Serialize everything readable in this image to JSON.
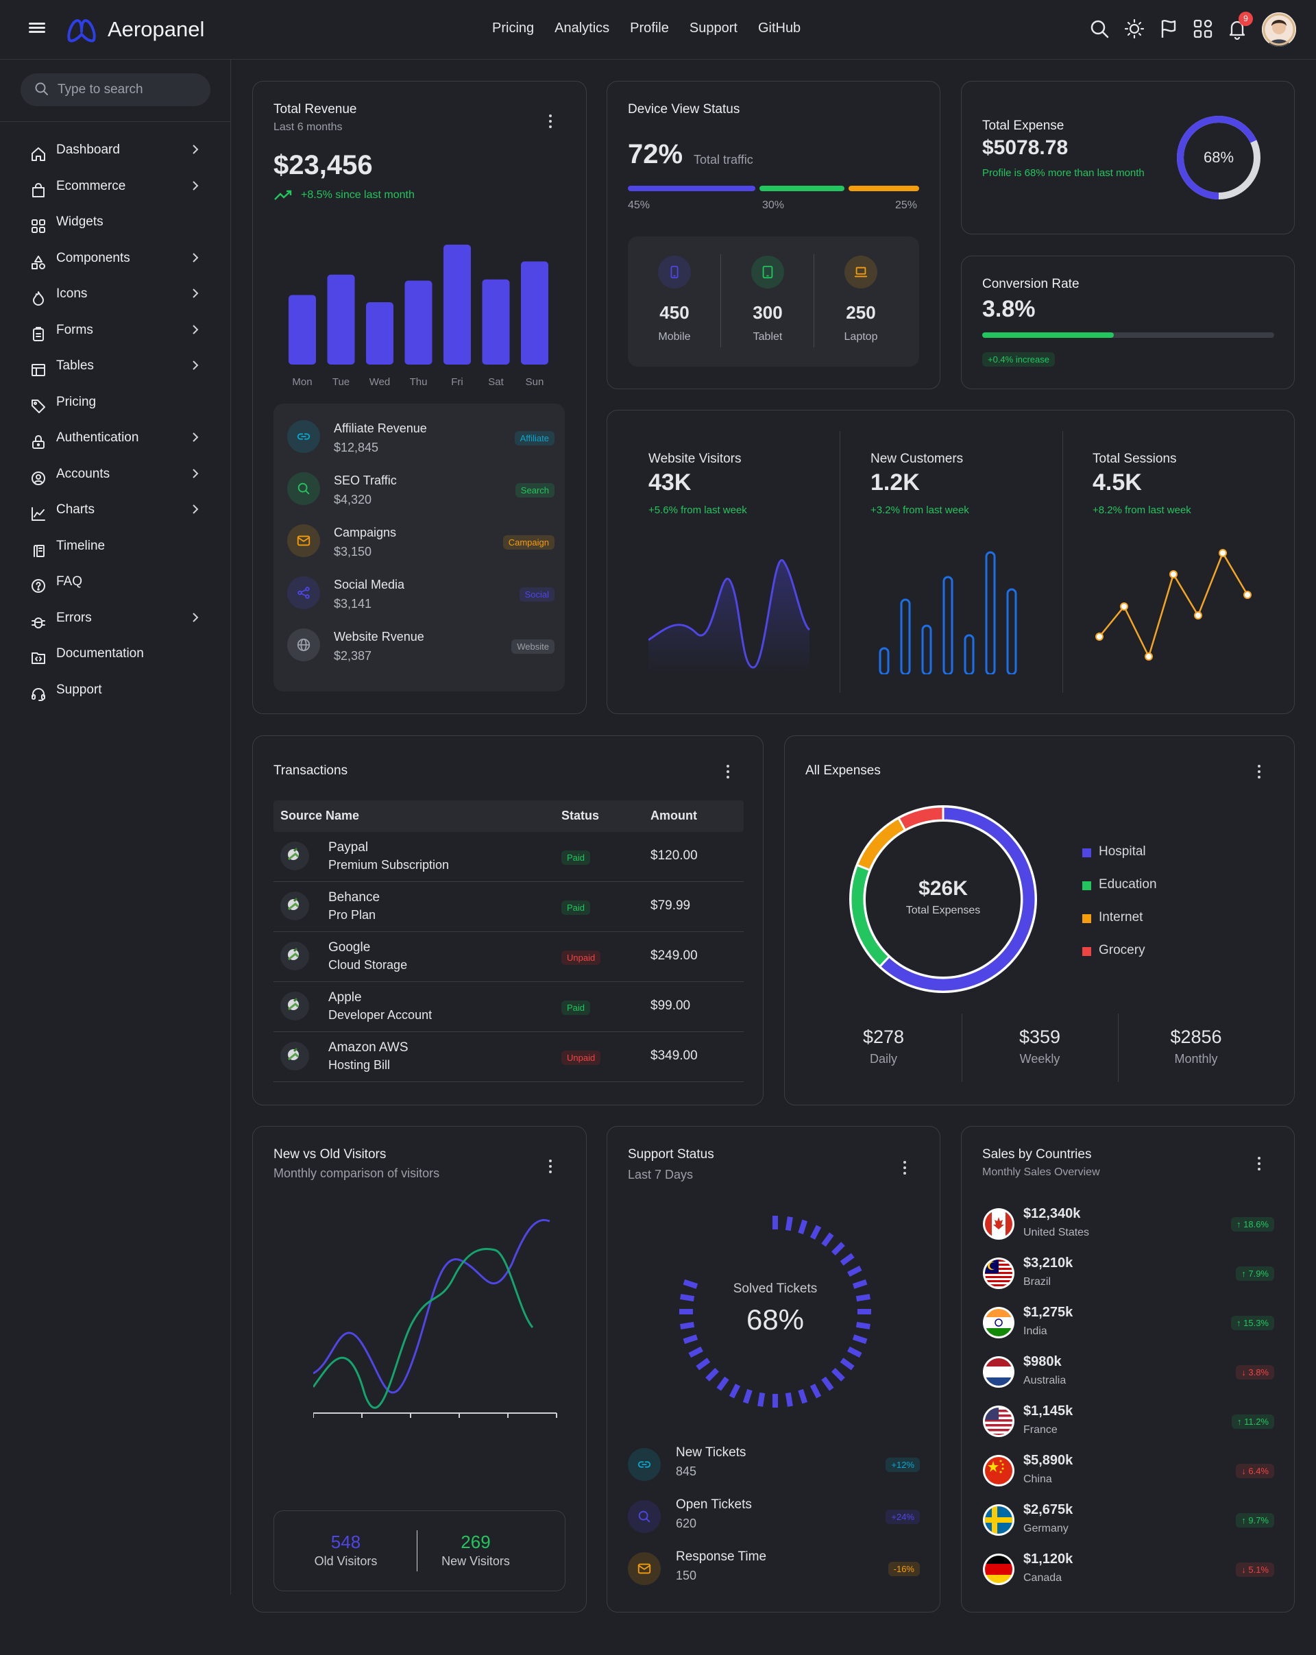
{
  "app": {
    "brand": "Aeropanel"
  },
  "topnav": [
    "Pricing",
    "Analytics",
    "Profile",
    "Support",
    "GitHub"
  ],
  "header_icons": [
    "search-icon",
    "sun-icon",
    "flag-icon",
    "apps-icon",
    "bell-icon"
  ],
  "notifications": {
    "count": "9"
  },
  "search": {
    "placeholder": "Type to search"
  },
  "sidebar": {
    "items": [
      {
        "label": "Dashboard",
        "icon": "home-icon",
        "chevron": true
      },
      {
        "label": "Ecommerce",
        "icon": "bag-icon",
        "chevron": true
      },
      {
        "label": "Widgets",
        "icon": "widgets-icon",
        "chevron": false
      },
      {
        "label": "Components",
        "icon": "shapes-icon",
        "chevron": true
      },
      {
        "label": "Icons",
        "icon": "flame-icon",
        "chevron": true
      },
      {
        "label": "Forms",
        "icon": "clipboard-icon",
        "chevron": true
      },
      {
        "label": "Tables",
        "icon": "table-icon",
        "chevron": true
      },
      {
        "label": "Pricing",
        "icon": "tag-icon",
        "chevron": false
      },
      {
        "label": "Authentication",
        "icon": "lock-icon",
        "chevron": true
      },
      {
        "label": "Accounts",
        "icon": "user-circle-icon",
        "chevron": true
      },
      {
        "label": "Charts",
        "icon": "chart-icon",
        "chevron": true
      },
      {
        "label": "Timeline",
        "icon": "timeline-icon",
        "chevron": false
      },
      {
        "label": "FAQ",
        "icon": "help-icon",
        "chevron": false
      },
      {
        "label": "Errors",
        "icon": "bug-icon",
        "chevron": true
      },
      {
        "label": "Documentation",
        "icon": "folder-code-icon",
        "chevron": false
      },
      {
        "label": "Support",
        "icon": "headset-icon",
        "chevron": false
      }
    ]
  },
  "revenue": {
    "title": "Total Revenue",
    "subtitle": "Last 6 months",
    "total": "$23,456",
    "change": "+8.5% since last month",
    "chart_data": {
      "type": "bar",
      "categories": [
        "Mon",
        "Tue",
        "Wed",
        "Thu",
        "Fri",
        "Sat",
        "Sun"
      ],
      "values": [
        58,
        75,
        52,
        70,
        100,
        71,
        86
      ]
    },
    "sources": [
      {
        "name": "Affiliate Revenue",
        "amount": "$12,845",
        "tag": "Affiliate",
        "icon": "link-icon",
        "color": "#0ea5c9"
      },
      {
        "name": "SEO Traffic",
        "amount": "$4,320",
        "tag": "Search",
        "icon": "search-icon",
        "color": "#22c55e"
      },
      {
        "name": "Campaigns",
        "amount": "$3,150",
        "tag": "Campaign",
        "icon": "mail-icon",
        "color": "#f59e0b"
      },
      {
        "name": "Social Media",
        "amount": "$3,141",
        "tag": "Social",
        "icon": "share-icon",
        "color": "#4f46e5"
      },
      {
        "name": "Website Rvenue",
        "amount": "$2,387",
        "tag": "Website",
        "icon": "globe-icon",
        "color": "#9ca0a8"
      }
    ]
  },
  "device": {
    "title": "Device View Status",
    "percent": "72%",
    "percent_label": "Total traffic",
    "segments": [
      {
        "value": 45,
        "label": "45%",
        "color": "#4f46e5"
      },
      {
        "value": 30,
        "label": "30%",
        "color": "#22c55e"
      },
      {
        "value": 25,
        "label": "25%",
        "color": "#f59e0b"
      }
    ],
    "stats": [
      {
        "value": "450",
        "label": "Mobile",
        "icon": "mobile-icon",
        "color": "#4f46e5"
      },
      {
        "value": "300",
        "label": "Tablet",
        "icon": "tablet-icon",
        "color": "#22c55e"
      },
      {
        "value": "250",
        "label": "Laptop",
        "icon": "laptop-icon",
        "color": "#f59e0b"
      }
    ]
  },
  "expense": {
    "title": "Total Expense",
    "value": "$5078.78",
    "note": "Profile is 68% more than last month",
    "ring": 68,
    "ring_label": "68%"
  },
  "conversion": {
    "title": "Conversion Rate",
    "value": "3.8%",
    "progress": 45,
    "badge": "+0.4% increase"
  },
  "metrics": [
    {
      "title": "Website Visitors",
      "value": "43K",
      "change": "+5.6% from last week"
    },
    {
      "title": "New Customers",
      "value": "1.2K",
      "change": "+3.2% from last week"
    },
    {
      "title": "Total Sessions",
      "value": "4.5K",
      "change": "+8.2% from last week"
    }
  ],
  "transactions": {
    "title": "Transactions",
    "columns": [
      "Source Name",
      "Status",
      "Amount"
    ],
    "rows": [
      {
        "name": "Paypal",
        "desc": "Premium Subscription",
        "status": "Paid",
        "amount": "$120.00"
      },
      {
        "name": "Behance",
        "desc": "Pro Plan",
        "status": "Paid",
        "amount": "$79.99"
      },
      {
        "name": "Google",
        "desc": "Cloud Storage",
        "status": "Unpaid",
        "amount": "$249.00"
      },
      {
        "name": "Apple",
        "desc": "Developer Account",
        "status": "Paid",
        "amount": "$99.00"
      },
      {
        "name": "Amazon AWS",
        "desc": "Hosting Bill",
        "status": "Unpaid",
        "amount": "$349.00"
      }
    ]
  },
  "expenses": {
    "title": "All Expenses",
    "center_value": "$26K",
    "center_label": "Total Expenses",
    "chart_data": {
      "type": "pie",
      "slices": [
        {
          "label": "Hospital",
          "value": 62,
          "color": "#4f46e5"
        },
        {
          "label": "Education",
          "value": 19,
          "color": "#22c55e"
        },
        {
          "label": "Internet",
          "value": 11,
          "color": "#f59e0b"
        },
        {
          "label": "Grocery",
          "value": 8,
          "color": "#ef4444"
        }
      ]
    },
    "periods": [
      {
        "value": "$278",
        "label": "Daily"
      },
      {
        "value": "$359",
        "label": "Weekly"
      },
      {
        "value": "$2856",
        "label": "Monthly"
      }
    ]
  },
  "visitors": {
    "title": "New vs Old Visitors",
    "subtitle": "Monthly comparison of visitors",
    "old": {
      "value": "548",
      "label": "Old Visitors",
      "color": "#4f46e5"
    },
    "new": {
      "value": "269",
      "label": "New Visitors",
      "color": "#22c55e"
    }
  },
  "support": {
    "title": "Support Status",
    "subtitle": "Last 7 Days",
    "gauge_label": "Solved Tickets",
    "gauge_value": "68%",
    "gauge_fraction": 0.68,
    "items": [
      {
        "name": "New Tickets",
        "value": "845",
        "badge": "+12%",
        "icon": "link-icon",
        "color": "#0ea5c9"
      },
      {
        "name": "Open Tickets",
        "value": "620",
        "badge": "+24%",
        "icon": "search-icon",
        "color": "#4f46e5"
      },
      {
        "name": "Response Time",
        "value": "150",
        "badge": "-16%",
        "icon": "mail-icon",
        "color": "#f59e0b"
      }
    ]
  },
  "countries": {
    "title": "Sales by Countries",
    "subtitle": "Monthly Sales Overview",
    "rows": [
      {
        "amount": "$12,340k",
        "country": "United States",
        "change": "18.6%",
        "up": true,
        "flag": "canada"
      },
      {
        "amount": "$3,210k",
        "country": "Brazil",
        "change": "7.9%",
        "up": true,
        "flag": "malaysia"
      },
      {
        "amount": "$1,275k",
        "country": "India",
        "change": "15.3%",
        "up": true,
        "flag": "india"
      },
      {
        "amount": "$980k",
        "country": "Australia",
        "change": "3.8%",
        "up": false,
        "flag": "netherlands"
      },
      {
        "amount": "$1,145k",
        "country": "France",
        "change": "11.2%",
        "up": true,
        "flag": "usa"
      },
      {
        "amount": "$5,890k",
        "country": "China",
        "change": "6.4%",
        "up": false,
        "flag": "china"
      },
      {
        "amount": "$2,675k",
        "country": "Germany",
        "change": "9.7%",
        "up": true,
        "flag": "sweden"
      },
      {
        "amount": "$1,120k",
        "country": "Canada",
        "change": "5.1%",
        "up": false,
        "flag": "germany"
      }
    ]
  }
}
